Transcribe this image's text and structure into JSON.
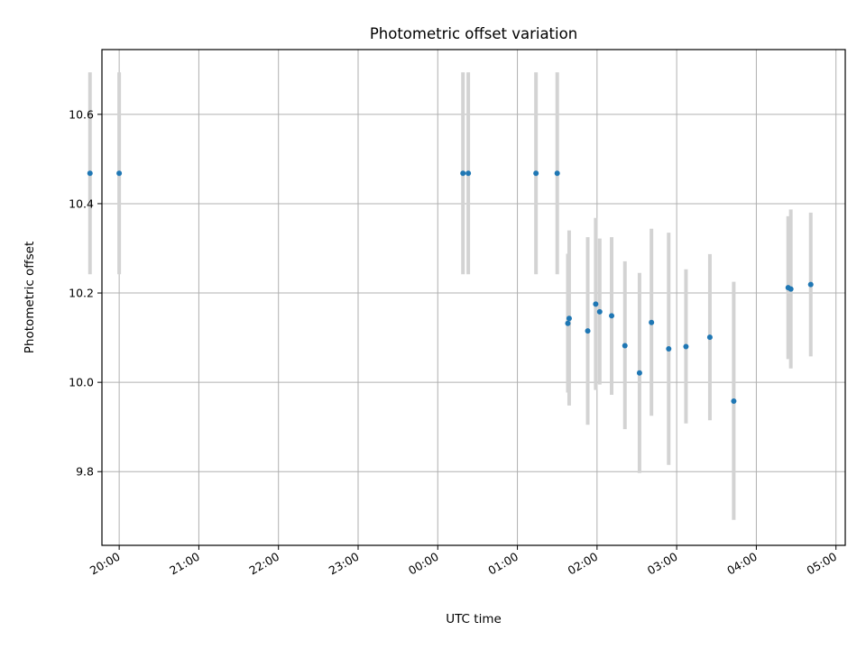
{
  "chart_data": {
    "type": "scatter",
    "title": "Photometric offset variation",
    "xlabel": "UTC time",
    "ylabel": "Photometric offset",
    "x_axis_kind": "time",
    "xlim": [
      "19:47",
      "05:07"
    ],
    "ylim": [
      9.635,
      10.745
    ],
    "x_tick_labels": [
      "20:00",
      "21:00",
      "22:00",
      "23:00",
      "00:00",
      "01:00",
      "02:00",
      "03:00",
      "04:00",
      "05:00"
    ],
    "y_tick_values": [
      9.8,
      10.0,
      10.2,
      10.4,
      10.6
    ],
    "y_tick_labels": [
      "9.8",
      "10.0",
      "10.2",
      "10.4",
      "10.6"
    ],
    "grid": true,
    "marker_color": "#1f77b4",
    "errorbar_color": "#d3d3d3",
    "points": [
      {
        "x": "19:38",
        "y": 10.468,
        "ylo": 10.242,
        "yhi": 10.694
      },
      {
        "x": "20:00",
        "y": 10.468,
        "ylo": 10.242,
        "yhi": 10.694
      },
      {
        "x": "00:19",
        "y": 10.468,
        "ylo": 10.242,
        "yhi": 10.694
      },
      {
        "x": "00:23",
        "y": 10.468,
        "ylo": 10.242,
        "yhi": 10.694
      },
      {
        "x": "01:14",
        "y": 10.468,
        "ylo": 10.242,
        "yhi": 10.694
      },
      {
        "x": "01:30",
        "y": 10.468,
        "ylo": 10.242,
        "yhi": 10.694
      },
      {
        "x": "01:38",
        "y": 10.132,
        "ylo": 9.977,
        "yhi": 10.288
      },
      {
        "x": "01:39",
        "y": 10.143,
        "ylo": 9.948,
        "yhi": 10.34
      },
      {
        "x": "01:53",
        "y": 10.115,
        "ylo": 9.905,
        "yhi": 10.325
      },
      {
        "x": "01:59",
        "y": 10.175,
        "ylo": 9.983,
        "yhi": 10.368
      },
      {
        "x": "02:02",
        "y": 10.158,
        "ylo": 9.995,
        "yhi": 10.322
      },
      {
        "x": "02:11",
        "y": 10.149,
        "ylo": 9.972,
        "yhi": 10.325
      },
      {
        "x": "02:21",
        "y": 10.082,
        "ylo": 9.895,
        "yhi": 10.271
      },
      {
        "x": "02:32",
        "y": 10.021,
        "ylo": 9.797,
        "yhi": 10.245
      },
      {
        "x": "02:41",
        "y": 10.134,
        "ylo": 9.925,
        "yhi": 10.344
      },
      {
        "x": "02:54",
        "y": 10.075,
        "ylo": 9.815,
        "yhi": 10.335
      },
      {
        "x": "03:07",
        "y": 10.08,
        "ylo": 9.908,
        "yhi": 10.253
      },
      {
        "x": "03:25",
        "y": 10.101,
        "ylo": 9.915,
        "yhi": 10.287
      },
      {
        "x": "03:43",
        "y": 9.958,
        "ylo": 9.692,
        "yhi": 10.225
      },
      {
        "x": "04:24",
        "y": 10.212,
        "ylo": 10.052,
        "yhi": 10.372
      },
      {
        "x": "04:26",
        "y": 10.209,
        "ylo": 10.031,
        "yhi": 10.387
      },
      {
        "x": "04:41",
        "y": 10.219,
        "ylo": 10.058,
        "yhi": 10.38
      }
    ]
  }
}
